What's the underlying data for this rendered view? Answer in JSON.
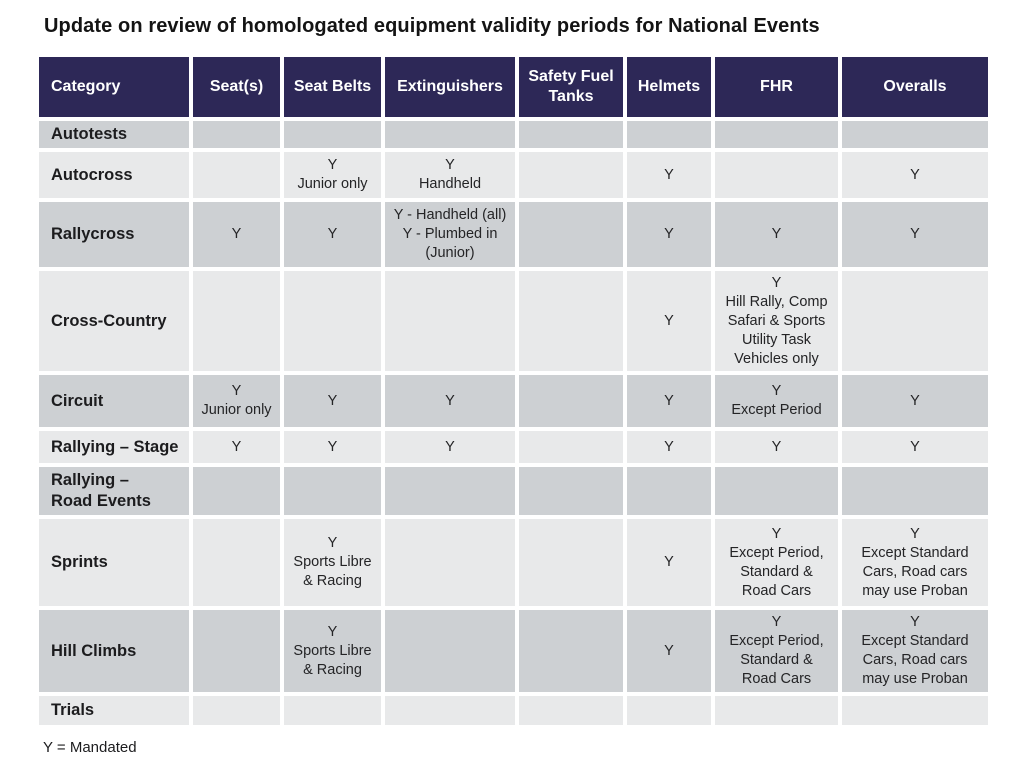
{
  "title": "Update on review of homologated equipment validity periods for National Events",
  "legend": "Y = Mandated",
  "colors": {
    "header_bg": "#2d2857",
    "row_dark": "#cdd0d3",
    "row_light": "#e8e9ea",
    "header_text": "#ffffff",
    "body_text": "#1d1d1f",
    "page_bg": "#ffffff"
  },
  "table": {
    "columns": [
      "Category",
      "Seat(s)",
      "Seat Belts",
      "Extinguishers",
      "Safety Fuel Tanks",
      "Helmets",
      "FHR",
      "Overalls"
    ],
    "rows": [
      {
        "category": "Autotests",
        "cells": [
          "",
          "",
          "",
          "",
          "",
          "",
          ""
        ]
      },
      {
        "category": "Autocross",
        "cells": [
          "",
          "Y\nJunior only",
          "Y\nHandheld",
          "",
          "Y",
          "",
          "Y"
        ]
      },
      {
        "category": "Rallycross",
        "cells": [
          "Y",
          "Y",
          "Y - Handheld (all)\nY - Plumbed in\n(Junior)",
          "",
          "Y",
          "Y",
          "Y"
        ]
      },
      {
        "category": "Cross-Country",
        "cells": [
          "",
          "",
          "",
          "",
          "Y",
          "Y\nHill Rally, Comp\nSafari & Sports\nUtility Task\nVehicles only",
          ""
        ]
      },
      {
        "category": "Circuit",
        "cells": [
          "Y\nJunior only",
          "Y",
          "Y",
          "",
          "Y",
          "Y\nExcept Period",
          "Y"
        ]
      },
      {
        "category": "Rallying – Stage",
        "cells": [
          "Y",
          "Y",
          "Y",
          "",
          "Y",
          "Y",
          "Y"
        ]
      },
      {
        "category": "Rallying –\nRoad Events",
        "cells": [
          "",
          "",
          "",
          "",
          "",
          "",
          ""
        ]
      },
      {
        "category": "Sprints",
        "cells": [
          "",
          "Y\nSports Libre\n& Racing",
          "",
          "",
          "Y",
          "Y\nExcept Period,\nStandard &\nRoad Cars",
          "Y\nExcept Standard\nCars, Road cars\nmay use Proban"
        ]
      },
      {
        "category": "Hill Climbs",
        "cells": [
          "",
          "Y\nSports Libre\n& Racing",
          "",
          "",
          "Y",
          "Y\nExcept Period,\nStandard &\nRoad Cars",
          "Y\nExcept Standard\nCars, Road cars\nmay use Proban"
        ]
      },
      {
        "category": "Trials",
        "cells": [
          "",
          "",
          "",
          "",
          "",
          "",
          ""
        ]
      }
    ]
  }
}
